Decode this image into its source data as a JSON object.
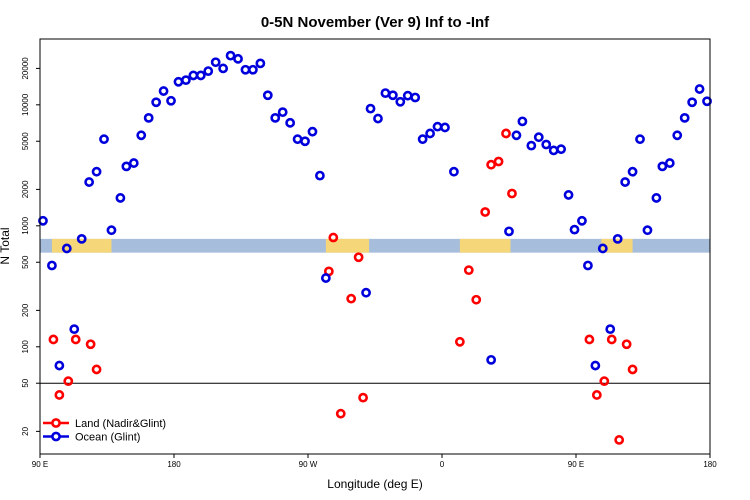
{
  "chart_data": {
    "type": "scatter",
    "title": "0-5N November (Ver 9)   Inf to -Inf",
    "xlabel": "Longitude (deg E)",
    "ylabel": "N Total",
    "x_scale": "linear",
    "y_scale": "log",
    "xlim": [
      0,
      450
    ],
    "ylim": [
      13,
      35000
    ],
    "x_ticks": [
      {
        "value": 0,
        "label": "90 E"
      },
      {
        "value": 90,
        "label": "180"
      },
      {
        "value": 180,
        "label": "90 W"
      },
      {
        "value": 270,
        "label": "0"
      },
      {
        "value": 360,
        "label": "90 E"
      },
      {
        "value": 450,
        "label": "180"
      }
    ],
    "y_ticks": [
      20,
      50,
      100,
      200,
      500,
      1000,
      2000,
      5000,
      10000,
      20000
    ],
    "reference_line": 50,
    "land_mask": {
      "y_range": [
        600,
        780
      ],
      "base_color": "#a6bddb",
      "land_color": "#f5d77a",
      "land_segments": [
        [
          8,
          48
        ],
        [
          192,
          221
        ],
        [
          282,
          316
        ],
        [
          377,
          398
        ]
      ]
    },
    "legend_position": "bottom-left",
    "series": [
      {
        "name": "Land (Nadir&Glint)",
        "color": "#ff0000",
        "points": [
          [
            9,
            115
          ],
          [
            13,
            40
          ],
          [
            19,
            52
          ],
          [
            24,
            115
          ],
          [
            34,
            105
          ],
          [
            38,
            65
          ],
          [
            197,
            800
          ],
          [
            194,
            420
          ],
          [
            202,
            28
          ],
          [
            209,
            250
          ],
          [
            214,
            550
          ],
          [
            217,
            38
          ],
          [
            282,
            110
          ],
          [
            288,
            430
          ],
          [
            293,
            245
          ],
          [
            299,
            1300
          ],
          [
            303,
            3200
          ],
          [
            308,
            3400
          ],
          [
            313,
            5800
          ],
          [
            317,
            1850
          ],
          [
            369,
            115
          ],
          [
            374,
            40
          ],
          [
            379,
            52
          ],
          [
            384,
            115
          ],
          [
            389,
            17
          ],
          [
            394,
            105
          ],
          [
            398,
            65
          ]
        ]
      },
      {
        "name": "Ocean (Glint)",
        "color": "#0000dd",
        "points": [
          [
            2,
            1100
          ],
          [
            8,
            470
          ],
          [
            13,
            70
          ],
          [
            18,
            650
          ],
          [
            23,
            140
          ],
          [
            28,
            780
          ],
          [
            33,
            2300
          ],
          [
            38,
            2800
          ],
          [
            43,
            5200
          ],
          [
            48,
            920
          ],
          [
            54,
            1700
          ],
          [
            58,
            3100
          ],
          [
            63,
            3300
          ],
          [
            68,
            5600
          ],
          [
            73,
            7800
          ],
          [
            78,
            10500
          ],
          [
            83,
            13000
          ],
          [
            88,
            10800
          ],
          [
            93,
            15500
          ],
          [
            98,
            16000
          ],
          [
            103,
            17500
          ],
          [
            108,
            17500
          ],
          [
            113,
            19000
          ],
          [
            118,
            22500
          ],
          [
            123,
            20000
          ],
          [
            128,
            25500
          ],
          [
            133,
            24000
          ],
          [
            138,
            19500
          ],
          [
            143,
            19500
          ],
          [
            148,
            22000
          ],
          [
            153,
            12000
          ],
          [
            158,
            7800
          ],
          [
            163,
            8700
          ],
          [
            168,
            7100
          ],
          [
            173,
            5200
          ],
          [
            178,
            5000
          ],
          [
            183,
            6000
          ],
          [
            188,
            2600
          ],
          [
            192,
            370
          ],
          [
            219,
            280
          ],
          [
            222,
            9300
          ],
          [
            227,
            7700
          ],
          [
            232,
            12500
          ],
          [
            237,
            12000
          ],
          [
            242,
            10600
          ],
          [
            247,
            11900
          ],
          [
            252,
            11500
          ],
          [
            257,
            5200
          ],
          [
            262,
            5800
          ],
          [
            267,
            6600
          ],
          [
            272,
            6500
          ],
          [
            278,
            2800
          ],
          [
            303,
            78
          ],
          [
            315,
            900
          ],
          [
            320,
            5600
          ],
          [
            324,
            7300
          ],
          [
            330,
            4600
          ],
          [
            335,
            5400
          ],
          [
            340,
            4700
          ],
          [
            345,
            4200
          ],
          [
            350,
            4300
          ],
          [
            355,
            1800
          ],
          [
            359,
            930
          ],
          [
            364,
            1100
          ],
          [
            368,
            470
          ],
          [
            373,
            70
          ],
          [
            378,
            650
          ],
          [
            383,
            140
          ],
          [
            388,
            780
          ],
          [
            393,
            2300
          ],
          [
            398,
            2800
          ],
          [
            403,
            5200
          ],
          [
            408,
            920
          ],
          [
            414,
            1700
          ],
          [
            418,
            3100
          ],
          [
            423,
            3300
          ],
          [
            428,
            5600
          ],
          [
            433,
            7800
          ],
          [
            438,
            10500
          ],
          [
            443,
            13500
          ],
          [
            448,
            10700
          ]
        ]
      }
    ]
  }
}
